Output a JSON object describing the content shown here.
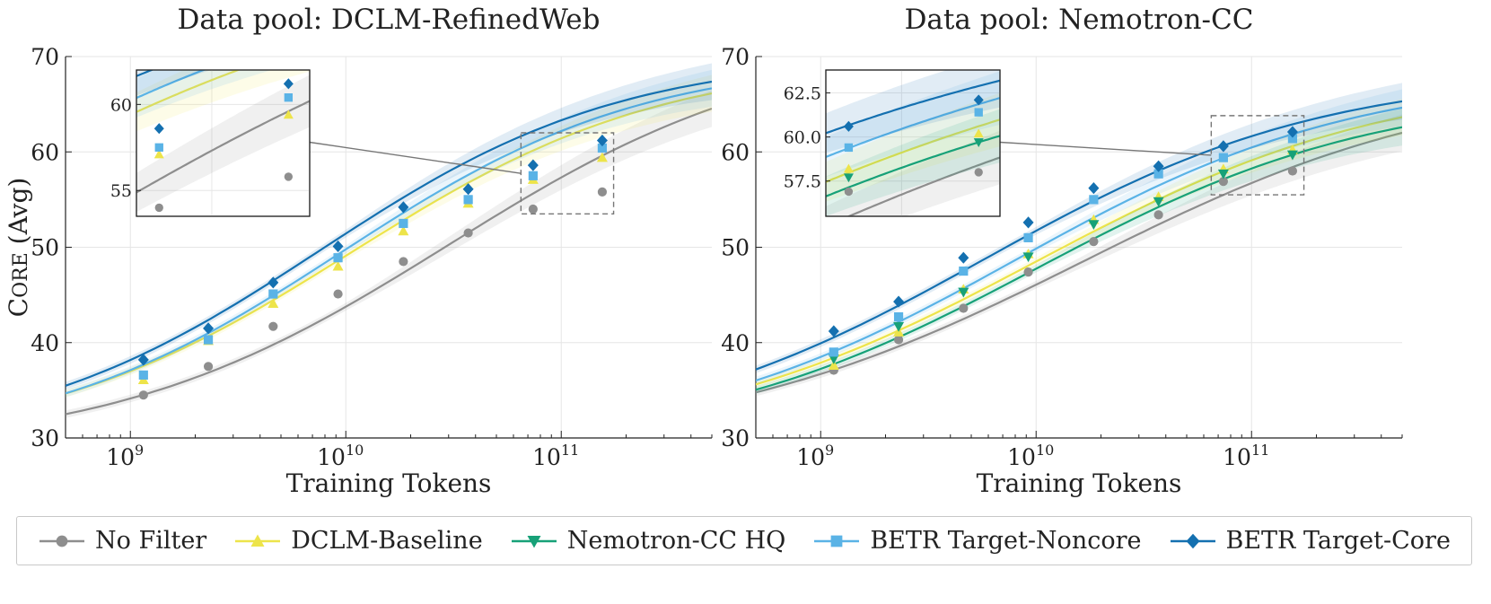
{
  "chart_data": [
    {
      "type": "line",
      "title": "Data pool: DCLM-RefinedWeb",
      "xlabel": "Training Tokens",
      "ylabel": "Core (Avg)",
      "xscale": "log",
      "xlim": [
        500000000.0,
        500000000000.0
      ],
      "ylim": [
        30,
        70
      ],
      "yticks": [
        30,
        40,
        50,
        60,
        70
      ],
      "xticks": [
        {
          "value": 1000000000.0,
          "base": "10",
          "exp": "9"
        },
        {
          "value": 10000000000.0,
          "base": "10",
          "exp": "10"
        },
        {
          "value": 100000000000.0,
          "base": "10",
          "exp": "11"
        }
      ],
      "grid": true,
      "series": [
        {
          "name": "No Filter",
          "color": "#8e8e8e",
          "marker": "circle",
          "x": [
            1150000000.0,
            2300000000.0,
            4600000000.0,
            9200000000.0,
            18500000000.0,
            37000000000.0,
            74000000000.0,
            155000000000.0
          ],
          "values": [
            34.5,
            37.5,
            41.7,
            45.1,
            48.5,
            51.5,
            54.0,
            55.8
          ],
          "fit": {
            "a": 28.5,
            "b": 72.0,
            "x0": 30000000000.0,
            "k": 0.56
          }
        },
        {
          "name": "DCLM-Baseline",
          "color": "#ede44a",
          "marker": "triangle-up",
          "x": [
            1150000000.0,
            2300000000.0,
            4600000000.0,
            9200000000.0,
            18500000000.0,
            37000000000.0,
            74000000000.0,
            155000000000.0
          ],
          "values": [
            36.1,
            40.2,
            44.1,
            48.0,
            51.7,
            54.6,
            57.1,
            59.4
          ],
          "fit": {
            "a": 29.0,
            "b": 69.8,
            "x0": 10500000000.0,
            "k": 0.6
          }
        },
        {
          "name": "BETR Target-Noncore",
          "color": "#5ab3e6",
          "marker": "square",
          "x": [
            1150000000.0,
            2300000000.0,
            4600000000.0,
            9200000000.0,
            18500000000.0,
            37000000000.0,
            74000000000.0,
            155000000000.0
          ],
          "values": [
            36.6,
            40.3,
            45.1,
            48.9,
            52.5,
            55.0,
            57.5,
            60.4
          ],
          "fit": {
            "a": 29.0,
            "b": 69.9,
            "x0": 9500000000.0,
            "k": 0.62
          }
        },
        {
          "name": "BETR Target-Core",
          "color": "#1470b0",
          "marker": "diamond",
          "x": [
            1150000000.0,
            2300000000.0,
            4600000000.0,
            9200000000.0,
            18500000000.0,
            37000000000.0,
            74000000000.0,
            155000000000.0
          ],
          "values": [
            38.2,
            41.5,
            46.3,
            50.1,
            54.2,
            56.1,
            58.6,
            61.2
          ],
          "fit": {
            "a": 29.0,
            "b": 70.2,
            "x0": 7500000000.0,
            "k": 0.62
          }
        }
      ],
      "inset": {
        "x": [
          65000000000.0,
          175000000000.0
        ],
        "y": [
          53.5,
          62.0
        ],
        "yticks": [
          55,
          60
        ],
        "ytick_labels": [
          "55",
          "60"
        ]
      }
    },
    {
      "type": "line",
      "title": "Data pool: Nemotron-CC",
      "xlabel": "Training Tokens",
      "ylabel": "",
      "xscale": "log",
      "xlim": [
        500000000.0,
        500000000000.0
      ],
      "ylim": [
        30,
        70
      ],
      "yticks": [
        30,
        40,
        50,
        60,
        70
      ],
      "xticks": [
        {
          "value": 1000000000.0,
          "base": "10",
          "exp": "9"
        },
        {
          "value": 10000000000.0,
          "base": "10",
          "exp": "10"
        },
        {
          "value": 100000000000.0,
          "base": "10",
          "exp": "11"
        }
      ],
      "grid": true,
      "series": [
        {
          "name": "No Filter",
          "color": "#8e8e8e",
          "marker": "circle",
          "x": [
            1150000000.0,
            2300000000.0,
            4600000000.0,
            9200000000.0,
            18500000000.0,
            37000000000.0,
            74000000000.0,
            155000000000.0
          ],
          "values": [
            37.1,
            40.3,
            43.6,
            47.4,
            50.6,
            53.4,
            56.9,
            58.0
          ],
          "fit": {
            "a": 29.0,
            "b": 68.0,
            "x0": 16500000000.0,
            "k": 0.5
          }
        },
        {
          "name": "DCLM-Baseline",
          "color": "#ede44a",
          "marker": "triangle-up",
          "x": [
            1150000000.0,
            2300000000.0,
            4600000000.0,
            9200000000.0,
            18500000000.0,
            37000000000.0,
            74000000000.0,
            155000000000.0
          ],
          "values": [
            37.6,
            41.1,
            45.6,
            49.3,
            52.9,
            55.3,
            58.2,
            60.2
          ],
          "fit": {
            "a": 29.0,
            "b": 68.0,
            "x0": 10000000000.0,
            "k": 0.53
          }
        },
        {
          "name": "Nemotron-CC HQ",
          "color": "#17a178",
          "marker": "triangle-down",
          "x": [
            1150000000.0,
            2300000000.0,
            4600000000.0,
            9200000000.0,
            18500000000.0,
            37000000000.0,
            74000000000.0,
            155000000000.0
          ],
          "values": [
            38.3,
            41.7,
            45.3,
            49.0,
            52.4,
            54.8,
            57.7,
            59.7
          ],
          "fit": {
            "a": 29.0,
            "b": 66.5,
            "x0": 10000000000.0,
            "k": 0.55
          }
        },
        {
          "name": "BETR Target-Noncore",
          "color": "#5ab3e6",
          "marker": "square",
          "x": [
            1150000000.0,
            2300000000.0,
            4600000000.0,
            9200000000.0,
            18500000000.0,
            37000000000.0,
            74000000000.0,
            155000000000.0
          ],
          "values": [
            39.0,
            42.7,
            47.5,
            51.0,
            55.0,
            57.7,
            59.4,
            61.4
          ],
          "fit": {
            "a": 29.0,
            "b": 68.3,
            "x0": 8000000000.0,
            "k": 0.55
          }
        },
        {
          "name": "BETR Target-Core",
          "color": "#1470b0",
          "marker": "diamond",
          "x": [
            1150000000.0,
            2300000000.0,
            4600000000.0,
            9200000000.0,
            18500000000.0,
            37000000000.0,
            74000000000.0,
            155000000000.0
          ],
          "values": [
            41.2,
            44.3,
            48.9,
            52.6,
            56.2,
            58.5,
            60.6,
            62.1
          ],
          "fit": {
            "a": 29.0,
            "b": 68.4,
            "x0": 5700000000.0,
            "k": 0.55
          }
        }
      ],
      "inset": {
        "x": [
          65000000000.0,
          175000000000.0
        ],
        "y": [
          55.5,
          63.8
        ],
        "yticks": [
          57.5,
          60.0,
          62.5
        ],
        "ytick_labels": [
          "57.5",
          "60.0",
          "62.5"
        ]
      }
    }
  ],
  "legend": [
    {
      "label": "No Filter",
      "color": "#8e8e8e",
      "marker": "circle"
    },
    {
      "label": "DCLM-Baseline",
      "color": "#ede44a",
      "marker": "triangle-up"
    },
    {
      "label": "Nemotron-CC HQ",
      "color": "#17a178",
      "marker": "triangle-down"
    },
    {
      "label": "BETR Target-Noncore",
      "color": "#5ab3e6",
      "marker": "square"
    },
    {
      "label": "BETR Target-Core",
      "color": "#1470b0",
      "marker": "diamond"
    }
  ]
}
